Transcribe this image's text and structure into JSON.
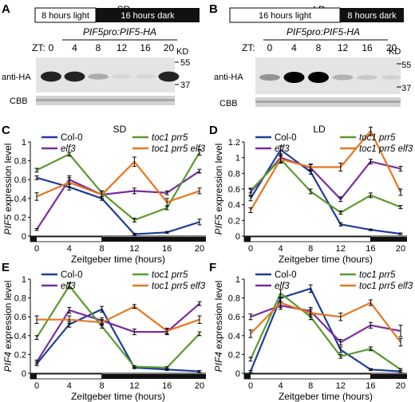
{
  "panels": {
    "A": {
      "letter": "A",
      "condition": "SD",
      "light_label": "8 hours light",
      "dark_label": "16 hours dark",
      "construct": "PIF5pro:PIF5-HA",
      "zt_label": "ZT:",
      "zt_values": [
        "0",
        "4",
        "8",
        "12",
        "16",
        "20"
      ],
      "kd_label": "KD",
      "markers": [
        "55",
        "37"
      ],
      "band_label": "anti-HA",
      "loading_label": "CBB",
      "band_intensity": [
        0.85,
        0.85,
        0.25,
        0.05,
        0.05,
        0.85
      ]
    },
    "B": {
      "letter": "B",
      "condition": "LD",
      "light_label": "16 hours light",
      "dark_label": "8 hours dark",
      "construct": "PIF5pro:PIF5-HA",
      "zt_label": "ZT:",
      "zt_values": [
        "0",
        "4",
        "8",
        "12",
        "16",
        "20"
      ],
      "kd_label": "KD",
      "markers": [
        "55",
        "37"
      ],
      "band_label": "anti-HA",
      "loading_label": "CBB",
      "band_intensity": [
        0.35,
        1.0,
        1.0,
        0.22,
        0.12,
        0.08
      ]
    }
  },
  "colors": {
    "Col-0": "#1f3d99",
    "toc1 prr5": "#5a9a2e",
    "elf3": "#7a2d9e",
    "toc1 prr5 elf3": "#e8761e"
  },
  "chart_data": [
    {
      "type": "line",
      "panel": "C",
      "title": "SD",
      "xlabel": "Zeitgeber time (hours)",
      "ylabel": "PIF5 expression level",
      "x": [
        0,
        4,
        8,
        12,
        16,
        20
      ],
      "xlim": [
        0,
        20
      ],
      "ylim": [
        0,
        1
      ],
      "yticks": [
        "0",
        "0.2",
        "0.4",
        "0.6",
        "0.8",
        "1"
      ],
      "light_until": 8,
      "legend_order": [
        "Col-0",
        "elf3",
        "toc1 prr5",
        "toc1 prr5 elf3"
      ],
      "series": [
        {
          "name": "Col-0",
          "values": [
            0.62,
            0.52,
            0.4,
            0.02,
            0.04,
            0.15
          ],
          "err": [
            0.02,
            0.03,
            0.02,
            0.01,
            0.01,
            0.03
          ]
        },
        {
          "name": "elf3",
          "values": [
            0.07,
            0.6,
            0.44,
            0.48,
            0.46,
            0.69
          ],
          "err": [
            0.01,
            0.04,
            0.02,
            0.03,
            0.02,
            0.02
          ]
        },
        {
          "name": "toc1 prr5",
          "values": [
            0.7,
            0.87,
            0.46,
            0.17,
            0.3,
            0.89
          ],
          "err": [
            0.02,
            0.02,
            0.02,
            0.02,
            0.02,
            0.03
          ]
        },
        {
          "name": "toc1 prr5 elf3",
          "values": [
            0.42,
            0.57,
            0.44,
            0.79,
            0.36,
            0.48
          ],
          "err": [
            0.04,
            0.05,
            0.04,
            0.05,
            0.04,
            0.03
          ]
        }
      ]
    },
    {
      "type": "line",
      "panel": "D",
      "title": "LD",
      "xlabel": "Zeitgeber time (hours)",
      "ylabel": "PIF5 expression level",
      "x": [
        0,
        4,
        8,
        12,
        16,
        20
      ],
      "xlim": [
        0,
        20
      ],
      "ylim": [
        0,
        1.2
      ],
      "yticks": [
        "0",
        "0.2",
        "0.4",
        "0.6",
        "0.8",
        "1",
        "1.2"
      ],
      "light_until": 16,
      "legend_order": [
        "Col-0",
        "elf3",
        "toc1 prr5",
        "toc1 prr5 elf3"
      ],
      "series": [
        {
          "name": "Col-0",
          "values": [
            0.48,
            1.1,
            0.82,
            0.15,
            0.08,
            0.03
          ],
          "err": [
            0.03,
            0.05,
            0.03,
            0.02,
            0.01,
            0.01
          ]
        },
        {
          "name": "elf3",
          "values": [
            0.56,
            1.0,
            0.87,
            0.47,
            0.95,
            0.86
          ],
          "err": [
            0.04,
            0.05,
            0.04,
            0.03,
            0.03,
            0.03
          ]
        },
        {
          "name": "toc1 prr5",
          "values": [
            0.58,
            0.98,
            0.57,
            0.3,
            0.52,
            0.37
          ],
          "err": [
            0.03,
            0.04,
            0.03,
            0.02,
            0.03,
            0.02
          ]
        },
        {
          "name": "toc1 prr5 elf3",
          "values": [
            0.33,
            0.98,
            0.88,
            0.88,
            1.34,
            0.56
          ],
          "err": [
            0.03,
            0.05,
            0.04,
            0.05,
            0.05,
            0.04
          ]
        }
      ]
    },
    {
      "type": "line",
      "panel": "E",
      "title": "",
      "xlabel": "Zeitgeber time (hours)",
      "ylabel": "PIF4 expression level",
      "x": [
        0,
        4,
        8,
        12,
        16,
        20
      ],
      "xlim": [
        0,
        20
      ],
      "ylim": [
        0,
        1
      ],
      "yticks": [
        "0",
        "0.2",
        "0.4",
        "0.6",
        "0.8",
        "1"
      ],
      "light_until": 8,
      "legend_order": [
        "Col-0",
        "elf3",
        "toc1 prr5",
        "toc1 prr5 elf3"
      ],
      "series": [
        {
          "name": "Col-0",
          "values": [
            0.1,
            0.52,
            0.68,
            0.06,
            0.04,
            0.02
          ],
          "err": [
            0.02,
            0.03,
            0.03,
            0.01,
            0.01,
            0.01
          ]
        },
        {
          "name": "elf3",
          "values": [
            0.12,
            0.67,
            0.56,
            0.44,
            0.44,
            0.74
          ],
          "err": [
            0.02,
            0.03,
            0.03,
            0.03,
            0.03,
            0.02
          ]
        },
        {
          "name": "toc1 prr5",
          "values": [
            0.38,
            0.93,
            0.5,
            0.07,
            0.06,
            0.42
          ],
          "err": [
            0.02,
            0.03,
            0.02,
            0.01,
            0.01,
            0.02
          ]
        },
        {
          "name": "toc1 prr5 elf3",
          "values": [
            0.57,
            0.57,
            0.54,
            0.71,
            0.45,
            0.57
          ],
          "err": [
            0.04,
            0.04,
            0.03,
            0.02,
            0.03,
            0.04
          ]
        }
      ]
    },
    {
      "type": "line",
      "panel": "F",
      "title": "",
      "xlabel": "Zeitgeber time (hours)",
      "ylabel": "PIF4 expression level",
      "x": [
        0,
        4,
        8,
        12,
        16,
        20
      ],
      "xlim": [
        0,
        20
      ],
      "ylim": [
        0,
        1
      ],
      "yticks": [
        "0",
        "0.2",
        "0.4",
        "0.6",
        "0.8",
        "1"
      ],
      "light_until": 16,
      "legend_order": [
        "Col-0",
        "elf3",
        "toc1 prr5",
        "toc1 prr5 elf3"
      ],
      "series": [
        {
          "name": "Col-0",
          "values": [
            0.02,
            0.8,
            0.9,
            0.25,
            0.04,
            0.02
          ],
          "err": [
            0.01,
            0.04,
            0.04,
            0.03,
            0.01,
            0.01
          ]
        },
        {
          "name": "elf3",
          "values": [
            0.6,
            0.72,
            0.66,
            0.33,
            0.51,
            0.45
          ],
          "err": [
            0.03,
            0.04,
            0.04,
            0.03,
            0.03,
            0.06
          ]
        },
        {
          "name": "toc1 prr5",
          "values": [
            0.15,
            0.85,
            0.6,
            0.18,
            0.26,
            0.04
          ],
          "err": [
            0.02,
            0.04,
            0.03,
            0.02,
            0.02,
            0.01
          ]
        },
        {
          "name": "toc1 prr5 elf3",
          "values": [
            0.42,
            0.75,
            0.64,
            0.6,
            0.75,
            0.33
          ],
          "err": [
            0.04,
            0.05,
            0.04,
            0.04,
            0.03,
            0.04
          ]
        }
      ]
    }
  ]
}
